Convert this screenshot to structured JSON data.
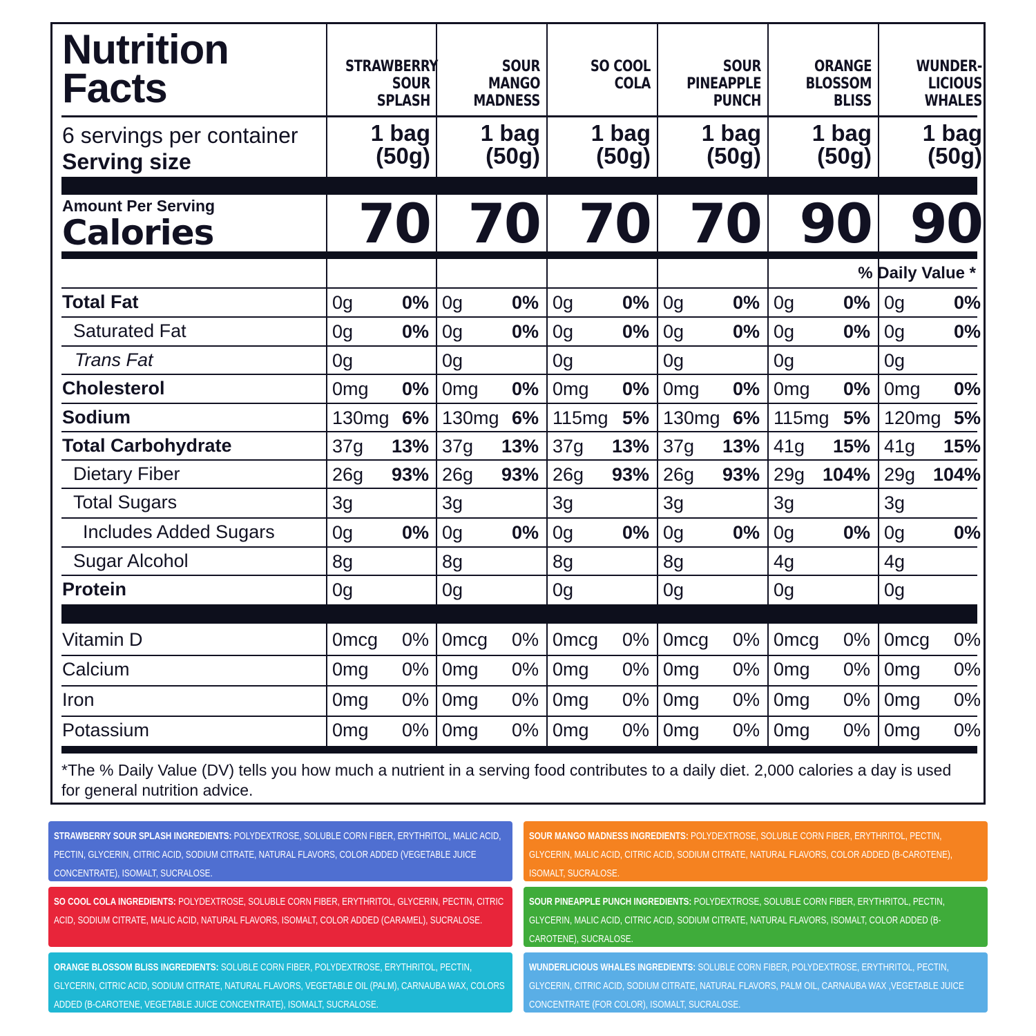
{
  "title": "Nutrition\nFacts",
  "servings_per_container": "6 servings per container",
  "serving_size_label": "Serving size",
  "amount_per_serving": "Amount Per Serving",
  "calories_label": "Calories",
  "daily_value_header": "% Daily Value *",
  "columns": [
    {
      "name": "STRAWBERRY\nSOUR\nSPLASH",
      "serving": "1 bag\n(50g)",
      "calories": "70"
    },
    {
      "name": "SOUR\nMANGO\nMADNESS",
      "serving": "1 bag\n(50g)",
      "calories": "70"
    },
    {
      "name": "SO COOL\nCOLA",
      "serving": "1 bag\n(50g)",
      "calories": "70"
    },
    {
      "name": "SOUR\nPINEAPPLE\nPUNCH",
      "serving": "1 bag\n(50g)",
      "calories": "70"
    },
    {
      "name": "ORANGE\nBLOSSOM\nBLISS",
      "serving": "1 bag\n(50g)",
      "calories": "90"
    },
    {
      "name": "WUNDER-\nLICIOUS\nWHALES",
      "serving": "1 bag\n(50g)",
      "calories": "90"
    }
  ],
  "nutrients": [
    {
      "label": "Total Fat",
      "cells": [
        [
          "0g",
          "0%"
        ],
        [
          "0g",
          "0%"
        ],
        [
          "0g",
          "0%"
        ],
        [
          "0g",
          "0%"
        ],
        [
          "0g",
          "0%"
        ],
        [
          "0g",
          "0%"
        ]
      ]
    },
    {
      "label": "Saturated Fat",
      "cells": [
        [
          "0g",
          "0%"
        ],
        [
          "0g",
          "0%"
        ],
        [
          "0g",
          "0%"
        ],
        [
          "0g",
          "0%"
        ],
        [
          "0g",
          "0%"
        ],
        [
          "0g",
          "0%"
        ]
      ]
    },
    {
      "label": "Trans Fat",
      "cells": [
        [
          "0g",
          ""
        ],
        [
          "0g",
          ""
        ],
        [
          "0g",
          ""
        ],
        [
          "0g",
          ""
        ],
        [
          "0g",
          ""
        ],
        [
          "0g",
          ""
        ]
      ]
    },
    {
      "label": "Cholesterol",
      "cells": [
        [
          "0mg",
          "0%"
        ],
        [
          "0mg",
          "0%"
        ],
        [
          "0mg",
          "0%"
        ],
        [
          "0mg",
          "0%"
        ],
        [
          "0mg",
          "0%"
        ],
        [
          "0mg",
          "0%"
        ]
      ]
    },
    {
      "label": "Sodium",
      "cells": [
        [
          "130mg",
          "6%"
        ],
        [
          "130mg",
          "6%"
        ],
        [
          "115mg",
          "5%"
        ],
        [
          "130mg",
          "6%"
        ],
        [
          "115mg",
          "5%"
        ],
        [
          "120mg",
          "5%"
        ]
      ]
    },
    {
      "label": "Total Carbohydrate",
      "cells": [
        [
          "37g",
          "13%"
        ],
        [
          "37g",
          "13%"
        ],
        [
          "37g",
          "13%"
        ],
        [
          "37g",
          "13%"
        ],
        [
          "41g",
          "15%"
        ],
        [
          "41g",
          "15%"
        ]
      ]
    },
    {
      "label": "Dietary Fiber",
      "cells": [
        [
          "26g",
          "93%"
        ],
        [
          "26g",
          "93%"
        ],
        [
          "26g",
          "93%"
        ],
        [
          "26g",
          "93%"
        ],
        [
          "29g",
          "104%"
        ],
        [
          "29g",
          "104%"
        ]
      ]
    },
    {
      "label": "Total Sugars",
      "cells": [
        [
          "3g",
          ""
        ],
        [
          "3g",
          ""
        ],
        [
          "3g",
          ""
        ],
        [
          "3g",
          ""
        ],
        [
          "3g",
          ""
        ],
        [
          "3g",
          ""
        ]
      ]
    },
    {
      "label": "Includes Added Sugars",
      "cells": [
        [
          "0g",
          "0%"
        ],
        [
          "0g",
          "0%"
        ],
        [
          "0g",
          "0%"
        ],
        [
          "0g",
          "0%"
        ],
        [
          "0g",
          "0%"
        ],
        [
          "0g",
          "0%"
        ]
      ]
    },
    {
      "label": "Sugar Alcohol",
      "cells": [
        [
          "8g",
          ""
        ],
        [
          "8g",
          ""
        ],
        [
          "8g",
          ""
        ],
        [
          "8g",
          ""
        ],
        [
          "4g",
          ""
        ],
        [
          "4g",
          ""
        ]
      ]
    },
    {
      "label": "Protein",
      "cells": [
        [
          "0g",
          ""
        ],
        [
          "0g",
          ""
        ],
        [
          "0g",
          ""
        ],
        [
          "0g",
          ""
        ],
        [
          "0g",
          ""
        ],
        [
          "0g",
          ""
        ]
      ]
    }
  ],
  "vitamins": [
    {
      "label": "Vitamin D",
      "cells": [
        [
          "0mcg",
          "0%"
        ],
        [
          "0mcg",
          "0%"
        ],
        [
          "0mcg",
          "0%"
        ],
        [
          "0mcg",
          "0%"
        ],
        [
          "0mcg",
          "0%"
        ],
        [
          "0mcg",
          "0%"
        ]
      ]
    },
    {
      "label": "Calcium",
      "cells": [
        [
          "0mg",
          "0%"
        ],
        [
          "0mg",
          "0%"
        ],
        [
          "0mg",
          "0%"
        ],
        [
          "0mg",
          "0%"
        ],
        [
          "0mg",
          "0%"
        ],
        [
          "0mg",
          "0%"
        ]
      ]
    },
    {
      "label": "Iron",
      "cells": [
        [
          "0mg",
          "0%"
        ],
        [
          "0mg",
          "0%"
        ],
        [
          "0mg",
          "0%"
        ],
        [
          "0mg",
          "0%"
        ],
        [
          "0mg",
          "0%"
        ],
        [
          "0mg",
          "0%"
        ]
      ]
    },
    {
      "label": "Potassium",
      "cells": [
        [
          "0mg",
          "0%"
        ],
        [
          "0mg",
          "0%"
        ],
        [
          "0mg",
          "0%"
        ],
        [
          "0mg",
          "0%"
        ],
        [
          "0mg",
          "0%"
        ],
        [
          "0mg",
          "0%"
        ]
      ]
    }
  ],
  "footnote": "*The % Daily Value (DV) tells you how much a nutrient in a serving food contributes to a daily diet. 2,000 calories a day is used for general nutrition advice.",
  "ingredients": [
    {
      "title": "STRAWBERRY SOUR SPLASH INGREDIENTS:",
      "text": " POLYDEXTROSE, SOLUBLE CORN FIBER, ERYTHRITOL, MALIC ACID, PECTIN, GLYCERIN, CITRIC ACID, SODIUM CITRATE, NATURAL FLAVORS, COLOR ADDED (VEGETABLE JUICE CONCENTRATE), ISOMALT, SUCRALOSE.",
      "color": "#4f6fd1"
    },
    {
      "title": "SOUR MANGO MADNESS INGREDIENTS:",
      "text": " POLYDEXTROSE, SOLUBLE CORN FIBER, ERYTHRITOL, PECTIN, GLYCERIN, MALIC ACID, CITRIC ACID, SODIUM CITRATE, NATURAL FLAVORS, COLOR ADDED (B-CAROTENE), ISOMALT, SUCRALOSE.",
      "color": "#f58220"
    },
    {
      "title": "SO COOL COLA INGREDIENTS:",
      "text": " POLYDEXTROSE, SOLUBLE CORN FIBER, ERYTHRITOL, GLYCERIN, PECTIN, CITRIC ACID, SODIUM CITRATE, MALIC ACID, NATURAL FLAVORS, ISOMALT, COLOR ADDED (CARAMEL), SUCRALOSE.",
      "color": "#e8253a"
    },
    {
      "title": "SOUR PINEAPPLE PUNCH INGREDIENTS:",
      "text": " POLYDEXTROSE, SOLUBLE CORN FIBER, ERYTHRITOL, PECTIN, GLYCERIN, MALIC ACID, CITRIC ACID, SODIUM CITRATE, NATURAL FLAVORS, ISOMALT, COLOR ADDED (B-CAROTENE), SUCRALOSE.",
      "color": "#3fac3a"
    },
    {
      "title": "ORANGE BLOSSOM BLISS INGREDIENTS:",
      "text": " SOLUBLE CORN FIBER, POLYDEXTROSE, ERYTHRITOL, PECTIN, GLYCERIN, CITRIC ACID, SODIUM CITRATE,  NATURAL FLAVORS, VEGETABLE OIL (PALM), CARNAUBA WAX, COLORS ADDED (B-CAROTENE, VEGETABLE JUICE CONCENTRATE), ISOMALT, SUCRALOSE.",
      "color": "#1fb8d4"
    },
    {
      "title": "WUNDERLICIOUS WHALES INGREDIENTS:",
      "text": " SOLUBLE CORN FIBER, POLYDEXTROSE, ERYTHRITOL, PECTIN, GLYCERIN, CITRIC ACID, SODIUM CITRATE, NATURAL FLAVORS, PALM OIL, CARNAUBA WAX ,VEGETABLE JUICE CONCENTRATE (FOR COLOR), ISOMALT, SUCRALOSE.",
      "color": "#5aaee6"
    }
  ]
}
